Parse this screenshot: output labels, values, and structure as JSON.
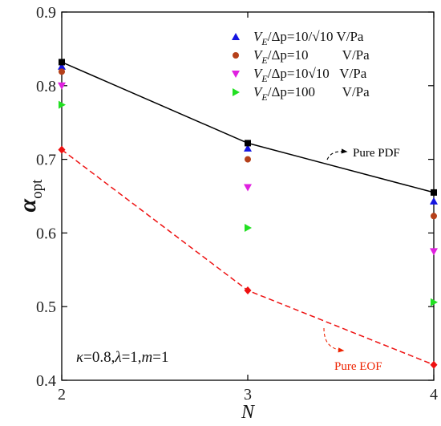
{
  "chart_data": {
    "type": "scatter",
    "xlabel": "N",
    "ylabel": "α",
    "ylabel_sub": "opt",
    "xlim": [
      2,
      4
    ],
    "ylim": [
      0.4,
      0.9
    ],
    "x_ticks": [
      2,
      3,
      4
    ],
    "x_tick_labels": [
      "2",
      "3",
      "4"
    ],
    "y_ticks": [
      0.4,
      0.5,
      0.6,
      0.7,
      0.8,
      0.9
    ],
    "y_tick_labels": [
      "0.4",
      "0.5",
      "0.6",
      "0.7",
      "0.8",
      "0.9"
    ],
    "grid": false,
    "legend_position": "top-right",
    "x": [
      2,
      3,
      4
    ],
    "series": [
      {
        "name": "V_E/Δp=10/√10 V/Pa",
        "legend": {
          "pre": "V",
          "sub": "E",
          "post": "/Δp=10/√10 V/Pa"
        },
        "marker": "triangle-up",
        "color": "#1515e0",
        "values": [
          0.826,
          0.715,
          0.643
        ]
      },
      {
        "name": "V_E/Δp=10 V/Pa",
        "legend": {
          "pre": "V",
          "sub": "E",
          "post": "/Δp=10          V/Pa"
        },
        "marker": "circle",
        "color": "#b5401a",
        "values": [
          0.819,
          0.7,
          0.623
        ]
      },
      {
        "name": "V_E/Δp=10√10 V/Pa",
        "legend": {
          "pre": "V",
          "sub": "E",
          "post": "/Δp=10√10   V/Pa"
        },
        "marker": "triangle-down",
        "color": "#e020e0",
        "values": [
          0.8,
          0.662,
          0.575
        ]
      },
      {
        "name": "V_E/Δp=100 V/Pa",
        "legend": {
          "pre": "V",
          "sub": "E",
          "post": "/Δp=100        V/Pa"
        },
        "marker": "triangle-right",
        "color": "#22e022",
        "values": [
          0.774,
          0.607,
          0.506
        ]
      }
    ],
    "lines": [
      {
        "name": "Pure PDF",
        "color": "#000000",
        "dash": "solid",
        "marker": "square",
        "values": [
          0.832,
          0.722,
          0.655
        ]
      },
      {
        "name": "Pure EOF",
        "color": "#ee1111",
        "dash": "dashed",
        "marker": "diamond",
        "values": [
          0.713,
          0.522,
          0.421
        ]
      }
    ],
    "annotations": [
      {
        "text": "Pure PDF",
        "color": "#000000",
        "at": [
          3.58,
          0.7
        ],
        "points_to": [
          3.4,
          0.688
        ]
      },
      {
        "text": "Pure EOF",
        "color": "#ee2200",
        "at": [
          3.7,
          0.436
        ],
        "points_to": [
          3.45,
          0.438
        ]
      }
    ],
    "params_text": {
      "k": "κ",
      "eq1": "=0.8,",
      "l": "λ",
      "eq2": "=1,",
      "m": "m",
      "eq3": "=1"
    }
  }
}
